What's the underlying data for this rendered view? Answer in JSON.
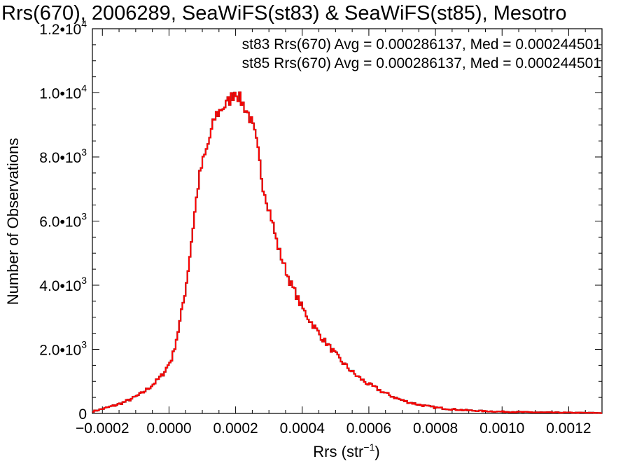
{
  "chart_data": {
    "type": "histogram",
    "title": "Rrs(670), 2006289, SeaWiFS(st83) & SeaWiFS(st85), Mesotro",
    "xlabel": {
      "base": "Rrs (str",
      "sup": "−1",
      "close": ")"
    },
    "ylabel": "Number of Observations",
    "xlim": [
      -0.00023,
      0.0013
    ],
    "ylim": [
      0,
      12000
    ],
    "x_ticks": [
      {
        "v": -0.0002,
        "label": "−0.0002"
      },
      {
        "v": 0.0,
        "label": "0.0000"
      },
      {
        "v": 0.0002,
        "label": "0.0002"
      },
      {
        "v": 0.0004,
        "label": "0.0004"
      },
      {
        "v": 0.0006,
        "label": "0.0006"
      },
      {
        "v": 0.0008,
        "label": "0.0008"
      },
      {
        "v": 0.001,
        "label": "0.0010"
      },
      {
        "v": 0.0012,
        "label": "0.0012"
      }
    ],
    "y_ticks": [
      {
        "v": 0,
        "label": "0",
        "mant": "",
        "exp": ""
      },
      {
        "v": 2000,
        "label": "",
        "mant": "2.0•10",
        "exp": "3"
      },
      {
        "v": 4000,
        "label": "",
        "mant": "4.0•10",
        "exp": "3"
      },
      {
        "v": 6000,
        "label": "",
        "mant": "6.0•10",
        "exp": "3"
      },
      {
        "v": 8000,
        "label": "",
        "mant": "8.0•10",
        "exp": "3"
      },
      {
        "v": 10000,
        "label": "",
        "mant": "1.0•10",
        "exp": "4"
      },
      {
        "v": 12000,
        "label": "",
        "mant": "1.2•10",
        "exp": "4"
      }
    ],
    "annotations": [
      {
        "text": "st83 Rrs(670) Avg = 0.000286137, Med = 0.000244501",
        "color": "#000000"
      },
      {
        "text": "st85 Rrs(670) Avg = 0.000286137, Med = 0.000244501",
        "color": "#ff0000"
      }
    ],
    "bin_width": 5e-06,
    "series": [
      {
        "color_st83": "#000000",
        "color_st85": "#ff0000",
        "points": [
          [
            -0.00023,
            60
          ],
          [
            -0.0002,
            140
          ],
          [
            -0.00018,
            200
          ],
          [
            -0.00016,
            260
          ],
          [
            -0.00014,
            330
          ],
          [
            -0.00012,
            420
          ],
          [
            -0.0001,
            520
          ],
          [
            -8e-05,
            640
          ],
          [
            -6e-05,
            800
          ],
          [
            -4e-05,
            980
          ],
          [
            -2e-05,
            1200
          ],
          [
            0.0,
            1550
          ],
          [
            1e-05,
            1750
          ],
          [
            2e-05,
            2200
          ],
          [
            3e-05,
            2700
          ],
          [
            4e-05,
            3300
          ],
          [
            5e-05,
            3900
          ],
          [
            6e-05,
            4700
          ],
          [
            7e-05,
            5600
          ],
          [
            8e-05,
            6500
          ],
          [
            9e-05,
            7300
          ],
          [
            0.0001,
            7800
          ],
          [
            0.00011,
            8100
          ],
          [
            0.00012,
            8500
          ],
          [
            0.00013,
            8900
          ],
          [
            0.00014,
            9300
          ],
          [
            0.00015,
            9400
          ],
          [
            0.00016,
            9550
          ],
          [
            0.00017,
            9600
          ],
          [
            0.00018,
            9750
          ],
          [
            0.00019,
            9900
          ],
          [
            0.0002,
            10100
          ],
          [
            0.00021,
            9850
          ],
          [
            0.00022,
            9700
          ],
          [
            0.00023,
            9500
          ],
          [
            0.00024,
            9300
          ],
          [
            0.00025,
            9000
          ],
          [
            0.00026,
            8600
          ],
          [
            0.00027,
            8000
          ],
          [
            0.00028,
            7200
          ],
          [
            0.00029,
            6800
          ],
          [
            0.0003,
            6400
          ],
          [
            0.00031,
            6000
          ],
          [
            0.00032,
            5500
          ],
          [
            0.00033,
            5100
          ],
          [
            0.00034,
            4800
          ],
          [
            0.00035,
            4500
          ],
          [
            0.00036,
            4200
          ],
          [
            0.00037,
            3950
          ],
          [
            0.00038,
            3750
          ],
          [
            0.00039,
            3500
          ],
          [
            0.0004,
            3300
          ],
          [
            0.00042,
            2950
          ],
          [
            0.00044,
            2650
          ],
          [
            0.00046,
            2350
          ],
          [
            0.00048,
            2100
          ],
          [
            0.0005,
            1850
          ],
          [
            0.00052,
            1600
          ],
          [
            0.00054,
            1400
          ],
          [
            0.00056,
            1200
          ],
          [
            0.00058,
            1050
          ],
          [
            0.0006,
            900
          ],
          [
            0.00062,
            800
          ],
          [
            0.00064,
            680
          ],
          [
            0.00066,
            580
          ],
          [
            0.00068,
            490
          ],
          [
            0.0007,
            410
          ],
          [
            0.00072,
            350
          ],
          [
            0.00074,
            300
          ],
          [
            0.00076,
            255
          ],
          [
            0.00078,
            215
          ],
          [
            0.0008,
            185
          ],
          [
            0.00085,
            130
          ],
          [
            0.0009,
            95
          ],
          [
            0.00095,
            70
          ],
          [
            0.001,
            55
          ],
          [
            0.00105,
            45
          ],
          [
            0.0011,
            35
          ],
          [
            0.00115,
            30
          ],
          [
            0.0012,
            25
          ],
          [
            0.00125,
            20
          ],
          [
            0.0013,
            15
          ]
        ]
      }
    ]
  }
}
